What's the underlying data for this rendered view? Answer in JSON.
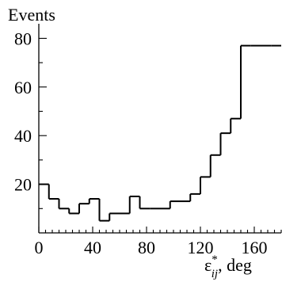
{
  "chart_data": {
    "type": "histogram",
    "ylabel": "Events",
    "xlabel_symbol": "ε",
    "xlabel_sup": "*",
    "xlabel_sub": "ij",
    "xlabel_unit": ", deg",
    "xlim": [
      0,
      180
    ],
    "ylim": [
      0,
      86
    ],
    "x_major_ticks": [
      0,
      40,
      80,
      120,
      160
    ],
    "x_minor_step": 5,
    "y_major_ticks": [
      20,
      40,
      60,
      80
    ],
    "y_minor_step": 10,
    "grid": false,
    "legend": "none",
    "bin_width": 7.5,
    "bin_edges": [
      0,
      7.5,
      15,
      22.5,
      30,
      37.5,
      45,
      52.5,
      60,
      67.5,
      75,
      82.5,
      90,
      97.5,
      105,
      112.5,
      120,
      127.5,
      135,
      142.5,
      150,
      157.5,
      165,
      172.5,
      180
    ],
    "values": [
      20,
      14,
      10,
      8,
      12,
      14,
      5,
      8,
      8,
      15,
      10,
      10,
      10,
      13,
      13,
      16,
      23,
      32,
      41,
      47,
      77,
      77,
      77,
      77
    ],
    "note_last_bin": "Final step at 172.5 continues to the right edge at 77"
  }
}
